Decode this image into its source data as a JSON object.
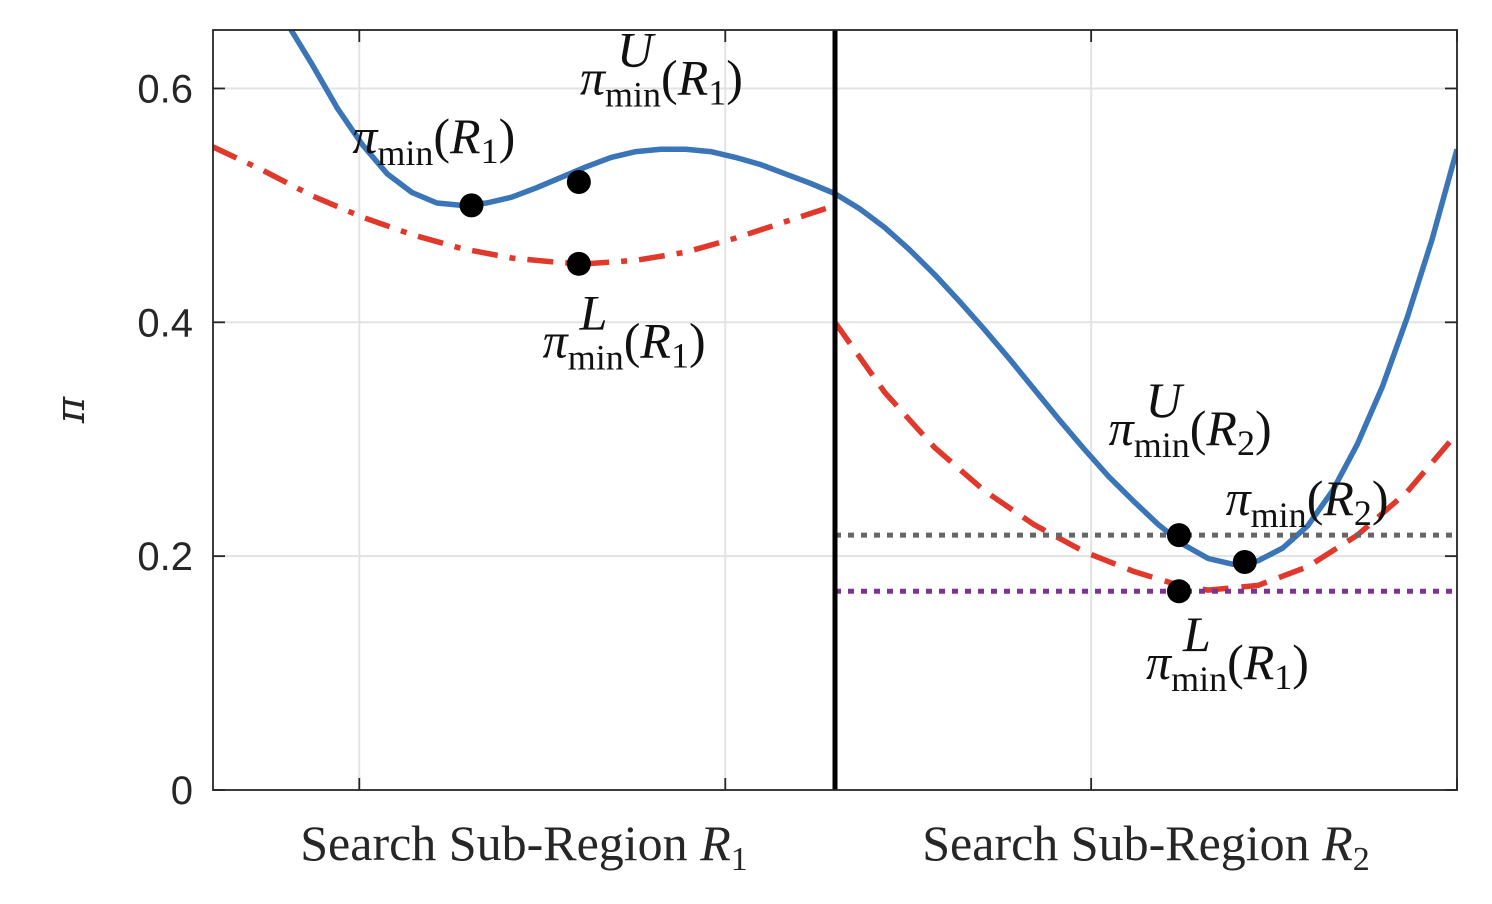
{
  "chart_data": {
    "type": "line",
    "ylabel": "π",
    "ylim": [
      0,
      0.65
    ],
    "xlim": [
      0,
      1
    ],
    "yticks": [
      0,
      0.2,
      0.4,
      0.6
    ],
    "ytick_labels": [
      "0",
      "0.2",
      "0.4",
      "0.6"
    ],
    "xgrid": [
      0.1176,
      0.4118,
      0.7059,
      1.0
    ],
    "grid": true,
    "regions": [
      {
        "label": "Search Sub-Region",
        "symbol": "R",
        "index": "1",
        "x_range": [
          0,
          0.5
        ]
      },
      {
        "label": "Search Sub-Region",
        "symbol": "R",
        "index": "2",
        "x_range": [
          0.5,
          1
        ]
      }
    ],
    "divider_x": 0.5,
    "colors": {
      "upper": "#3a75b8",
      "lower": "#e0392c",
      "gray_line": "#666666",
      "purple_line": "#7b3591",
      "divider": "#000000",
      "points": "#000000"
    },
    "series": [
      {
        "style": "solid",
        "color": "#3a75b8",
        "x": [
          0.06,
          0.08,
          0.1,
          0.12,
          0.14,
          0.16,
          0.18,
          0.2,
          0.22,
          0.24,
          0.26,
          0.28,
          0.3,
          0.32,
          0.34,
          0.36,
          0.38,
          0.4,
          0.42,
          0.44,
          0.46,
          0.48,
          0.5,
          0.52,
          0.54,
          0.56,
          0.58,
          0.6,
          0.62,
          0.64,
          0.66,
          0.68,
          0.7,
          0.72,
          0.74,
          0.76,
          0.78,
          0.8,
          0.82,
          0.84,
          0.86,
          0.88,
          0.9,
          0.92,
          0.94,
          0.96,
          0.98,
          1.0
        ],
        "y": [
          0.655,
          0.62,
          0.583,
          0.552,
          0.527,
          0.511,
          0.502,
          0.5,
          0.502,
          0.507,
          0.515,
          0.524,
          0.533,
          0.541,
          0.546,
          0.548,
          0.548,
          0.546,
          0.541,
          0.535,
          0.527,
          0.519,
          0.51,
          0.497,
          0.481,
          0.462,
          0.441,
          0.418,
          0.394,
          0.369,
          0.343,
          0.317,
          0.292,
          0.268,
          0.247,
          0.227,
          0.21,
          0.198,
          0.193,
          0.196,
          0.207,
          0.226,
          0.256,
          0.296,
          0.345,
          0.404,
          0.471,
          0.548
        ]
      },
      {
        "style": "dashdot",
        "color": "#e0392c",
        "x": [
          0.0,
          0.04,
          0.08,
          0.12,
          0.16,
          0.2,
          0.24,
          0.28,
          0.3,
          0.34,
          0.38,
          0.42,
          0.46,
          0.5
        ],
        "y": [
          0.55,
          0.53,
          0.508,
          0.49,
          0.475,
          0.463,
          0.455,
          0.451,
          0.45,
          0.453,
          0.46,
          0.472,
          0.486,
          0.5
        ]
      },
      {
        "style": "dashed",
        "color": "#e0392c",
        "x": [
          0.5,
          0.54,
          0.58,
          0.62,
          0.66,
          0.7,
          0.74,
          0.78,
          0.8,
          0.84,
          0.88,
          0.92,
          0.96,
          1.0
        ],
        "y": [
          0.4,
          0.34,
          0.293,
          0.256,
          0.227,
          0.204,
          0.187,
          0.174,
          0.171,
          0.175,
          0.191,
          0.218,
          0.255,
          0.305
        ]
      },
      {
        "style": "dotted",
        "color": "#666666",
        "x": [
          0.5,
          1.0
        ],
        "y": [
          0.218,
          0.218
        ]
      },
      {
        "style": "dotted",
        "color": "#7b3591",
        "x": [
          0.5,
          1.0
        ],
        "y": [
          0.17,
          0.17
        ]
      }
    ],
    "points": [
      {
        "x": 0.2078,
        "y": 0.5
      },
      {
        "x": 0.2941,
        "y": 0.52
      },
      {
        "x": 0.2941,
        "y": 0.45
      },
      {
        "x": 0.7765,
        "y": 0.218
      },
      {
        "x": 0.8294,
        "y": 0.195
      },
      {
        "x": 0.7765,
        "y": 0.17
      }
    ],
    "annotations": [
      {
        "symbol": "π",
        "sup": "",
        "sub": "min",
        "arg": "R",
        "arg_index": "1",
        "x": 0.112,
        "y": 0.545
      },
      {
        "symbol": "π",
        "sup": "U",
        "sub": "min",
        "arg": "R",
        "arg_index": "1",
        "x": 0.295,
        "y": 0.595
      },
      {
        "symbol": "π",
        "sup": "L",
        "sub": "min",
        "arg": "R",
        "arg_index": "1",
        "x": 0.265,
        "y": 0.37
      },
      {
        "symbol": "π",
        "sup": "U",
        "sub": "min",
        "arg": "R",
        "arg_index": "2",
        "x": 0.72,
        "y": 0.295
      },
      {
        "symbol": "π",
        "sup": "",
        "sub": "min",
        "arg": "R",
        "arg_index": "2",
        "x": 0.814,
        "y": 0.235
      },
      {
        "symbol": "π",
        "sup": "L",
        "sub": "min",
        "arg": "R",
        "arg_index": "1",
        "x": 0.75,
        "y": 0.095
      }
    ]
  }
}
